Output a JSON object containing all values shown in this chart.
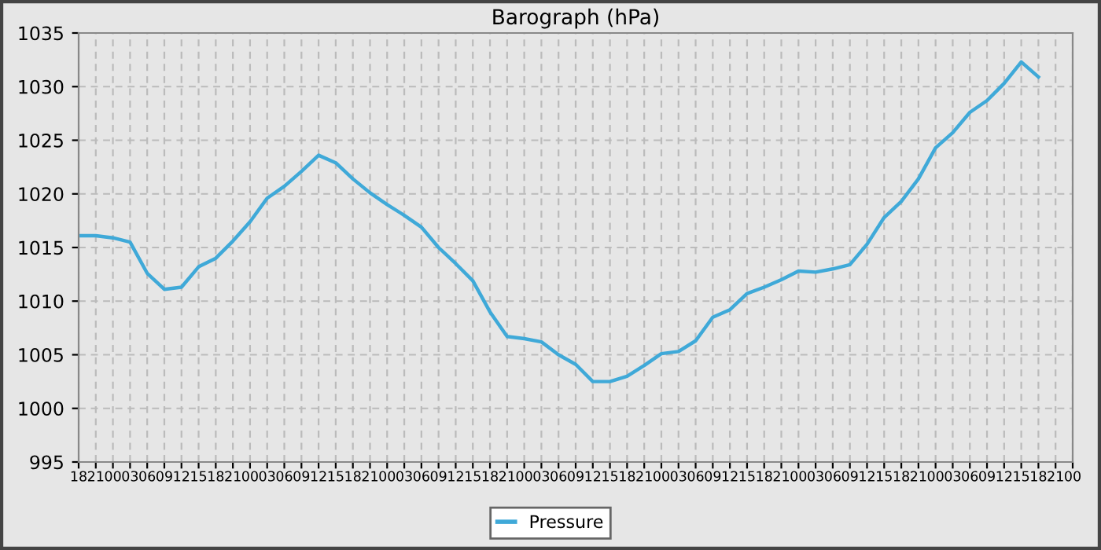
{
  "chart_data": {
    "type": "line",
    "title": "Barograph (hPa)",
    "categories": [
      "18",
      "21",
      "00",
      "03",
      "06",
      "09",
      "12",
      "15",
      "18",
      "21",
      "00",
      "03",
      "06",
      "09",
      "12",
      "15",
      "18",
      "21",
      "00",
      "03",
      "06",
      "09",
      "12",
      "15",
      "18",
      "21",
      "00",
      "03",
      "06",
      "09",
      "12",
      "15",
      "18",
      "21",
      "00",
      "03",
      "06",
      "09",
      "12",
      "15",
      "18",
      "21",
      "00",
      "03",
      "06",
      "09",
      "12",
      "15",
      "18",
      "21",
      "00",
      "03",
      "06",
      "09",
      "12",
      "15",
      "18",
      "21",
      "00"
    ],
    "series": [
      {
        "name": "Pressure",
        "color": "#3fa9d8",
        "values": [
          1016.1,
          1016.1,
          1015.9,
          1015.5,
          1012.6,
          1011.1,
          1011.3,
          1013.2,
          1014.0,
          1015.6,
          1017.4,
          1019.6,
          1020.7,
          1022.1,
          1023.6,
          1022.9,
          1021.4,
          1020.1,
          1019.0,
          1018.0,
          1016.9,
          1015.0,
          1013.5,
          1011.9,
          1009.0,
          1006.7,
          1006.5,
          1006.2,
          1005.0,
          1004.1,
          1002.5,
          1002.5,
          1003.0,
          1004.0,
          1005.1,
          1005.3,
          1006.3,
          1008.5,
          1009.2,
          1010.7,
          1011.3,
          1012.0,
          1012.8,
          1012.7,
          1013.0,
          1013.4,
          1015.3,
          1017.8,
          1019.3,
          1021.4,
          1024.3,
          1025.7,
          1027.6,
          1028.7,
          1030.3,
          1032.3,
          1030.9,
          null,
          null
        ]
      }
    ],
    "ylim": [
      995,
      1035
    ],
    "yticks": [
      995,
      1000,
      1005,
      1010,
      1015,
      1020,
      1025,
      1030,
      1035
    ],
    "grid": true,
    "legend": "bottom",
    "marker": "none",
    "line_style": "solid"
  }
}
